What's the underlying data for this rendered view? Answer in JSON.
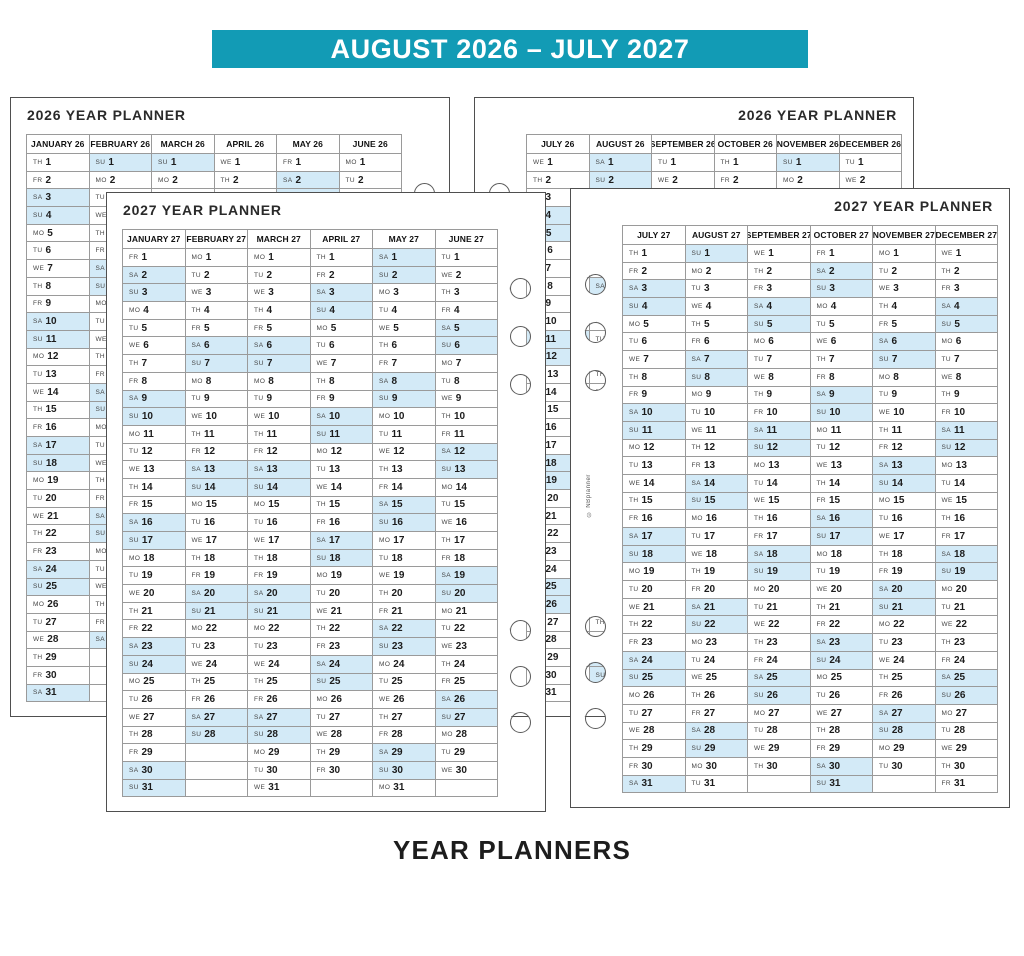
{
  "banner": {
    "text": "AUGUST 2026 – JULY 2027"
  },
  "caption": {
    "text": "YEAR PLANNERS"
  },
  "copyright": "© NBplanner",
  "colors": {
    "banner_teal": "#129bb5",
    "weekend_blue": "#d3eaf7",
    "grid_line": "#9a9a9a",
    "page_edge": "#4f4f4f",
    "text_ink": "#1d1d1d"
  },
  "dow": [
    "MO",
    "TU",
    "WE",
    "TH",
    "FR",
    "SA",
    "SU"
  ],
  "weekend_days": [
    "SA",
    "SU"
  ],
  "pages": [
    {
      "title": "2026 YEAR PLANNER",
      "months": [
        {
          "label": "JANUARY 26",
          "start": "TH",
          "days": 31
        },
        {
          "label": "FEBRUARY 26",
          "start": "SU",
          "days": 28
        },
        {
          "label": "MARCH 26",
          "start": "SU",
          "days": 31
        },
        {
          "label": "APRIL 26",
          "start": "WE",
          "days": 30
        },
        {
          "label": "MAY 26",
          "start": "FR",
          "days": 31
        },
        {
          "label": "JUNE 26",
          "start": "MO",
          "days": 30
        }
      ]
    },
    {
      "title": "2026 YEAR PLANNER",
      "months": [
        {
          "label": "JULY 26",
          "start": "WE",
          "days": 31
        },
        {
          "label": "AUGUST 26",
          "start": "SA",
          "days": 31
        },
        {
          "label": "SEPTEMBER 26",
          "start": "TU",
          "days": 30
        },
        {
          "label": "OCTOBER 26",
          "start": "TH",
          "days": 31
        },
        {
          "label": "NOVEMBER 26",
          "start": "SU",
          "days": 30
        },
        {
          "label": "DECEMBER 26",
          "start": "TU",
          "days": 31
        }
      ]
    },
    {
      "title": "2027 YEAR PLANNER",
      "months": [
        {
          "label": "JANUARY 27",
          "start": "FR",
          "days": 31
        },
        {
          "label": "FEBRUARY 27",
          "start": "MO",
          "days": 28
        },
        {
          "label": "MARCH 27",
          "start": "MO",
          "days": 31
        },
        {
          "label": "APRIL 27",
          "start": "TH",
          "days": 30
        },
        {
          "label": "MAY 27",
          "start": "SA",
          "days": 31
        },
        {
          "label": "JUNE 27",
          "start": "TU",
          "days": 30
        }
      ]
    },
    {
      "title": "2027 YEAR PLANNER",
      "months": [
        {
          "label": "JULY 27",
          "start": "TH",
          "days": 31
        },
        {
          "label": "AUGUST 27",
          "start": "SU",
          "days": 31
        },
        {
          "label": "SEPTEMBER 27",
          "start": "WE",
          "days": 30
        },
        {
          "label": "OCTOBER 27",
          "start": "FR",
          "days": 31
        },
        {
          "label": "NOVEMBER 27",
          "start": "MO",
          "days": 30
        },
        {
          "label": "DECEMBER 27",
          "start": "WE",
          "days": 31
        }
      ]
    }
  ]
}
